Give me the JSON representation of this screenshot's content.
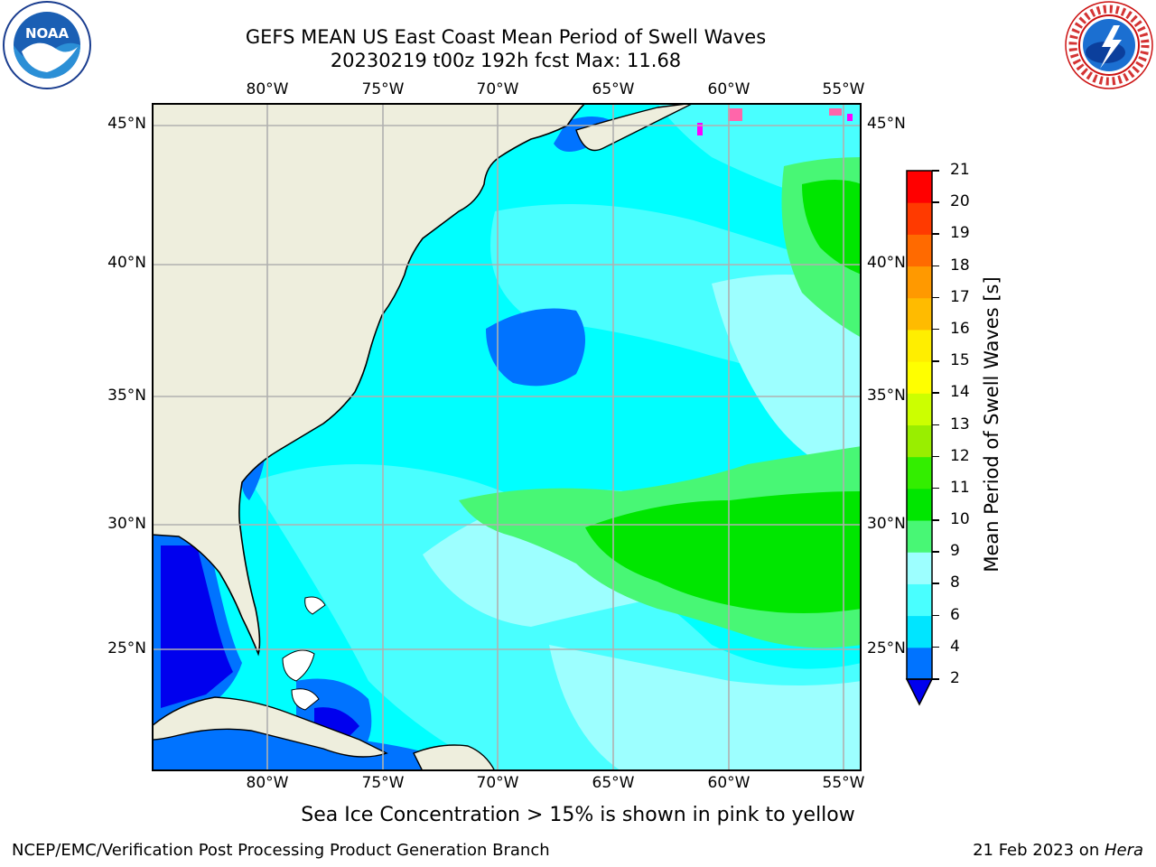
{
  "header": {
    "title_line1": "GEFS MEAN US East Coast Mean Period of Swell Waves",
    "title_line2": "20230219 t00z 192h fcst   Max: 11.68"
  },
  "logos": {
    "left": {
      "icon": "noaa-logo",
      "text": "NOAA"
    },
    "right": {
      "icon": "national-weather-service-logo",
      "ring_text": "NATIONAL WEATHER SERVICE"
    }
  },
  "map": {
    "lon_labels": [
      "80°W",
      "75°W",
      "70°W",
      "65°W",
      "60°W",
      "55°W"
    ],
    "lat_labels": [
      "45°N",
      "40°N",
      "35°N",
      "30°N",
      "25°N"
    ],
    "colors": {
      "ocean": "#00ffff",
      "land": "#eeeedd",
      "grid": "#b0b0b0",
      "coast": "#000000"
    }
  },
  "colorbar": {
    "label": "Mean Period of Swell Waves [s]",
    "ticks": [
      "2",
      "4",
      "6",
      "8",
      "9",
      "10",
      "11",
      "12",
      "13",
      "14",
      "15",
      "16",
      "17",
      "18",
      "19",
      "20",
      "21"
    ],
    "colors": [
      "#0073ff",
      "#00e5ff",
      "#49ffff",
      "#9dffff",
      "#48f775",
      "#00e600",
      "#33ee00",
      "#99ee00",
      "#ccff00",
      "#ffff00",
      "#ffee00",
      "#ffbb00",
      "#ff9900",
      "#ff6a00",
      "#ff3a00",
      "#ff0000"
    ],
    "under_color": "#0000ee"
  },
  "note": "Sea Ice Concentration > 15% is shown in pink to yellow",
  "footer": {
    "left": "NCEP/EMC/Verification Post Processing Product Generation Branch",
    "right_date": "21 Feb 2023 on ",
    "right_machine": "Hera"
  }
}
